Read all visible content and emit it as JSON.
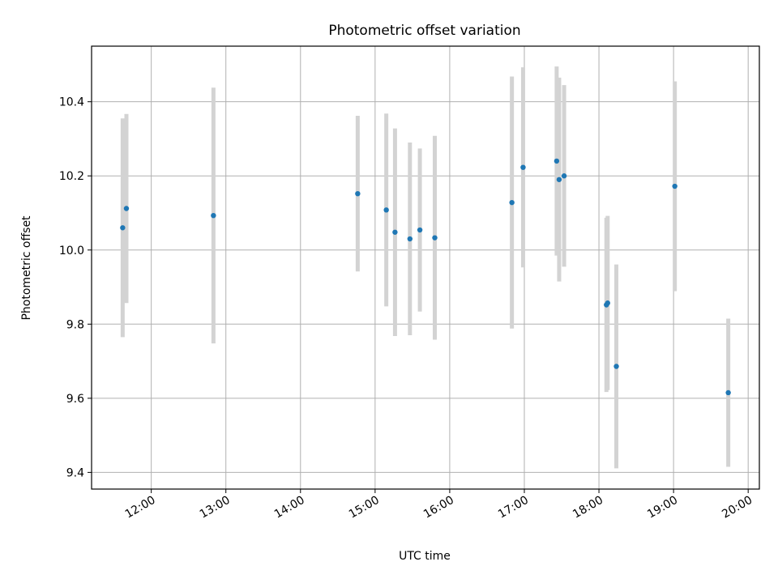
{
  "chart_data": {
    "type": "scatter",
    "title": "Photometric offset variation",
    "xlabel": "UTC time",
    "ylabel": "Photometric offset",
    "x_ticks": [
      "12:00",
      "13:00",
      "14:00",
      "15:00",
      "16:00",
      "17:00",
      "18:00",
      "19:00",
      "20:00"
    ],
    "y_ticks": [
      "9.4",
      "9.6",
      "9.8",
      "10.0",
      "10.2",
      "10.4"
    ],
    "x_range": [
      "11:12",
      "20:09"
    ],
    "ylim": [
      9.355,
      10.55
    ],
    "grid": true,
    "point_color": "#1f77b4",
    "errorbar_color": "#d3d3d3",
    "points": [
      {
        "t": "11:37",
        "y": 10.06,
        "err": 0.295
      },
      {
        "t": "11:40",
        "y": 10.112,
        "err": 0.255
      },
      {
        "t": "12:50",
        "y": 10.093,
        "err": 0.345
      },
      {
        "t": "14:46",
        "y": 10.152,
        "err": 0.21
      },
      {
        "t": "15:09",
        "y": 10.108,
        "err": 0.26
      },
      {
        "t": "15:16",
        "y": 10.048,
        "err": 0.28
      },
      {
        "t": "15:28",
        "y": 10.03,
        "err": 0.26
      },
      {
        "t": "15:36",
        "y": 10.054,
        "err": 0.22
      },
      {
        "t": "15:48",
        "y": 10.033,
        "err": 0.275
      },
      {
        "t": "16:50",
        "y": 10.128,
        "err": 0.34
      },
      {
        "t": "16:59",
        "y": 10.223,
        "err": 0.27
      },
      {
        "t": "17:26",
        "y": 10.24,
        "err": 0.255
      },
      {
        "t": "17:28",
        "y": 10.19,
        "err": 0.275
      },
      {
        "t": "17:32",
        "y": 10.2,
        "err": 0.245
      },
      {
        "t": "18:06",
        "y": 9.852,
        "err": 0.235
      },
      {
        "t": "18:07",
        "y": 9.857,
        "err": 0.235
      },
      {
        "t": "18:14",
        "y": 9.686,
        "err": 0.275
      },
      {
        "t": "19:01",
        "y": 10.172,
        "err": 0.283
      },
      {
        "t": "19:44",
        "y": 9.615,
        "err": 0.2
      }
    ]
  }
}
